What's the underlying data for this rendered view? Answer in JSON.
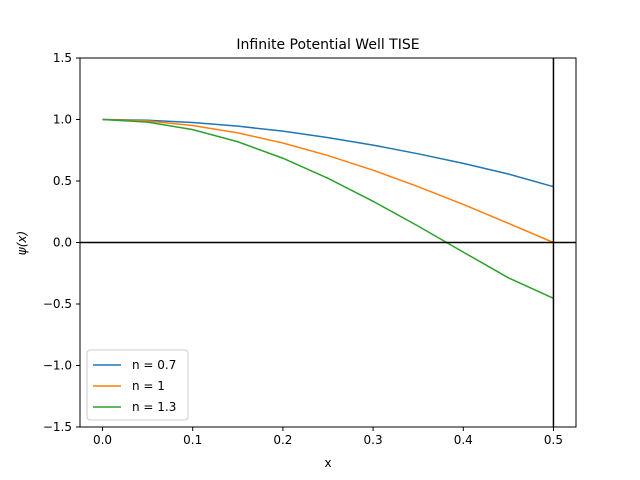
{
  "chart_data": {
    "type": "line",
    "title": "Infinite Potential Well TISE",
    "xlabel": "x",
    "ylabel": "ψ(x)",
    "xlim": [
      -0.025,
      0.525
    ],
    "ylim": [
      -1.5,
      1.5
    ],
    "x_ticks": [
      0.0,
      0.1,
      0.2,
      0.3,
      0.4,
      0.5
    ],
    "x_tick_labels": [
      "0.0",
      "0.1",
      "0.2",
      "0.3",
      "0.4",
      "0.5"
    ],
    "y_ticks": [
      -1.5,
      -1.0,
      -0.5,
      0.0,
      0.5,
      1.0,
      1.5
    ],
    "y_tick_labels": [
      "−1.5",
      "−1.0",
      "−0.5",
      "0.0",
      "0.5",
      "1.0",
      "1.5"
    ],
    "grid": false,
    "legend_position": "lower-left",
    "reference_lines": {
      "horizontal_y": 0,
      "vertical_x": 0.5,
      "color": "#000000"
    },
    "series": [
      {
        "name": "n = 0.7",
        "color": "#1f77b4",
        "x": [
          0.0,
          0.05,
          0.1,
          0.15,
          0.2,
          0.25,
          0.3,
          0.35,
          0.4,
          0.45,
          0.5
        ],
        "y": [
          1.0,
          0.994,
          0.976,
          0.946,
          0.905,
          0.853,
          0.792,
          0.721,
          0.643,
          0.557,
          0.454
        ]
      },
      {
        "name": "n = 1",
        "color": "#ff7f0e",
        "x": [
          0.0,
          0.05,
          0.1,
          0.15,
          0.2,
          0.25,
          0.3,
          0.35,
          0.4,
          0.45,
          0.5
        ],
        "y": [
          1.0,
          0.988,
          0.951,
          0.891,
          0.809,
          0.707,
          0.588,
          0.454,
          0.309,
          0.156,
          0.0
        ]
      },
      {
        "name": "n = 1.3",
        "color": "#2ca02c",
        "x": [
          0.0,
          0.05,
          0.1,
          0.15,
          0.2,
          0.25,
          0.3,
          0.35,
          0.4,
          0.45,
          0.5
        ],
        "y": [
          1.0,
          0.979,
          0.918,
          0.819,
          0.685,
          0.522,
          0.335,
          0.133,
          -0.078,
          -0.287,
          -0.454
        ]
      }
    ]
  }
}
